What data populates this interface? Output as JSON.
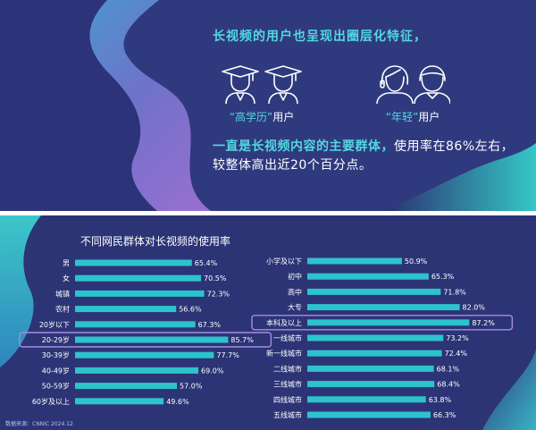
{
  "headline": "长视频的用户也呈现出圈层化特征，",
  "personas": [
    {
      "quote_open": "“",
      "highlight": "高学历",
      "quote_close": "”",
      "suffix": "用户"
    },
    {
      "quote_open": "“",
      "highlight": "年轻",
      "quote_close": "”",
      "suffix": "用户"
    }
  ],
  "summary": {
    "highlight": "一直是长视频内容的主要群体，",
    "rest": "使用率在86%左右，较整体高出近20个百分点。"
  },
  "source_note": "数据来源：CNNIC 2024.12",
  "colors": {
    "accent": "#53d6e0",
    "bar": "#2dc3cc",
    "highlight_border": "#a98be0"
  },
  "chart_data": [
    {
      "type": "bar",
      "orientation": "horizontal",
      "title": "不同网民群体对长视频的使用率",
      "categories": [
        "男",
        "女",
        "城镇",
        "农村",
        "20岁以下",
        "20-29岁",
        "30-39岁",
        "40-49岁",
        "50-59岁",
        "60岁及以上"
      ],
      "values": [
        65.4,
        70.5,
        72.3,
        56.6,
        67.3,
        85.7,
        77.7,
        69.0,
        57.0,
        49.6
      ],
      "labels": [
        "65.4%",
        "70.5%",
        "72.3%",
        "56.6%",
        "67.3%",
        "85.7%",
        "77.7%",
        "69.0%",
        "57.0%",
        "49.6%"
      ],
      "highlighted": [
        "20-29岁"
      ],
      "xlim": [
        0,
        100
      ]
    },
    {
      "type": "bar",
      "orientation": "horizontal",
      "categories": [
        "小学及以下",
        "初中",
        "高中",
        "大专",
        "本科及以上",
        "一线城市",
        "新一线城市",
        "二线城市",
        "三线城市",
        "四线城市",
        "五线城市"
      ],
      "values": [
        50.9,
        65.3,
        71.8,
        82.0,
        87.2,
        73.2,
        72.4,
        68.1,
        68.4,
        63.8,
        66.3
      ],
      "labels": [
        "50.9%",
        "65.3%",
        "71.8%",
        "82.0%",
        "87.2%",
        "73.2%",
        "72.4%",
        "68.1%",
        "68.4%",
        "63.8%",
        "66.3%"
      ],
      "highlighted": [
        "本科及以上"
      ],
      "xlim": [
        0,
        100
      ]
    }
  ]
}
